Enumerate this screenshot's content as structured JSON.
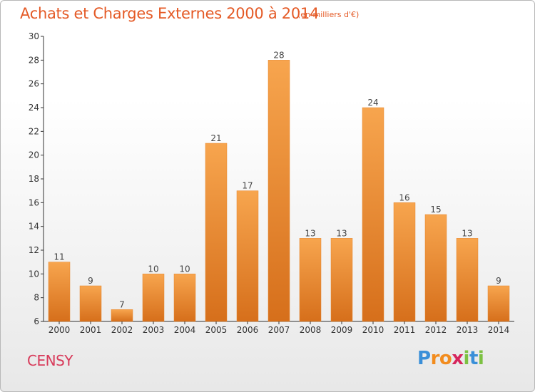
{
  "title": "Achats et Charges Externes 2000 à 2014",
  "subtitle": "(en milliers d'€)",
  "town": "CENSY",
  "brand": {
    "letters": [
      "P",
      "r",
      "o",
      "x",
      "i",
      "t",
      "i"
    ],
    "colors": [
      "#3a8fd8",
      "#f28c1e",
      "#f28c1e",
      "#d6255c",
      "#7cc142",
      "#3a8fd8",
      "#7cc142"
    ]
  },
  "colors": {
    "bar_top": "#f7a54e",
    "bar_bottom": "#d66f1b",
    "title": "#e45a26",
    "town": "#d83a5a"
  },
  "chart_data": {
    "type": "bar",
    "title": "Achats et Charges Externes 2000 à 2014",
    "subtitle": "(en milliers d'€)",
    "categories": [
      "2000",
      "2001",
      "2002",
      "2003",
      "2004",
      "2005",
      "2006",
      "2007",
      "2008",
      "2009",
      "2010",
      "2011",
      "2012",
      "2013",
      "2014"
    ],
    "values": [
      11,
      9,
      7,
      10,
      10,
      21,
      17,
      28,
      13,
      13,
      24,
      16,
      15,
      13,
      9
    ],
    "ylim": [
      6,
      30
    ],
    "yticks": [
      6,
      8,
      10,
      12,
      14,
      16,
      18,
      20,
      22,
      24,
      26,
      28,
      30
    ],
    "grid": false,
    "legend": "none"
  }
}
